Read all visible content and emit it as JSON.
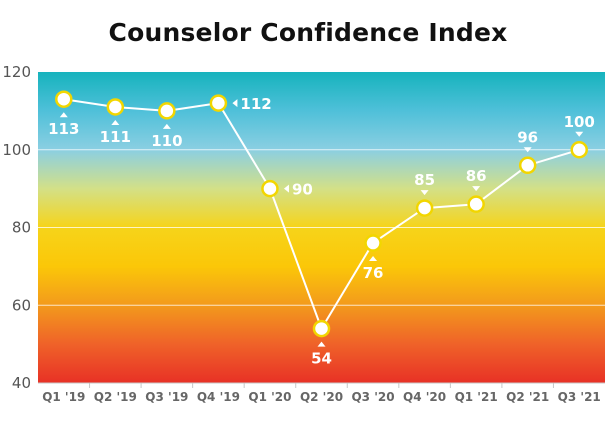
{
  "chart_data": {
    "type": "line",
    "title": "Counselor Confidence Index",
    "categories": [
      "Q1 '19",
      "Q2 '19",
      "Q3 '19",
      "Q4 '19",
      "Q1 '20",
      "Q2 '20",
      "Q3 '20",
      "Q4 '20",
      "Q1 '21",
      "Q2 '21",
      "Q3 '21"
    ],
    "series": [
      {
        "values": [
          113,
          111,
          110,
          112,
          90,
          54,
          76,
          85,
          86,
          96,
          100
        ],
        "labels": [
          "113",
          "111",
          "110",
          "112",
          "90",
          "54",
          "76",
          "85",
          "86",
          "96",
          "100"
        ],
        "label_side": [
          "below",
          "below",
          "below",
          "right",
          "right",
          "below",
          "below",
          "above",
          "above",
          "above",
          "above"
        ]
      }
    ],
    "yticks": [
      "40",
      "60",
      "80",
      "100",
      "120"
    ],
    "ylim": [
      40,
      120
    ],
    "xlabel": "",
    "ylabel": "",
    "grid": "horizontal",
    "colors": {
      "gradient": [
        "#16b3bd",
        "#4fc0d9",
        "#8bcfe2",
        "#d3e087",
        "#f6d41a",
        "#fbc708",
        "#f39a1c",
        "#ef6229",
        "#e83126"
      ],
      "line": "#ffffff",
      "marker_fill": "#ffffff",
      "marker_stroke": "#f2d600"
    }
  }
}
